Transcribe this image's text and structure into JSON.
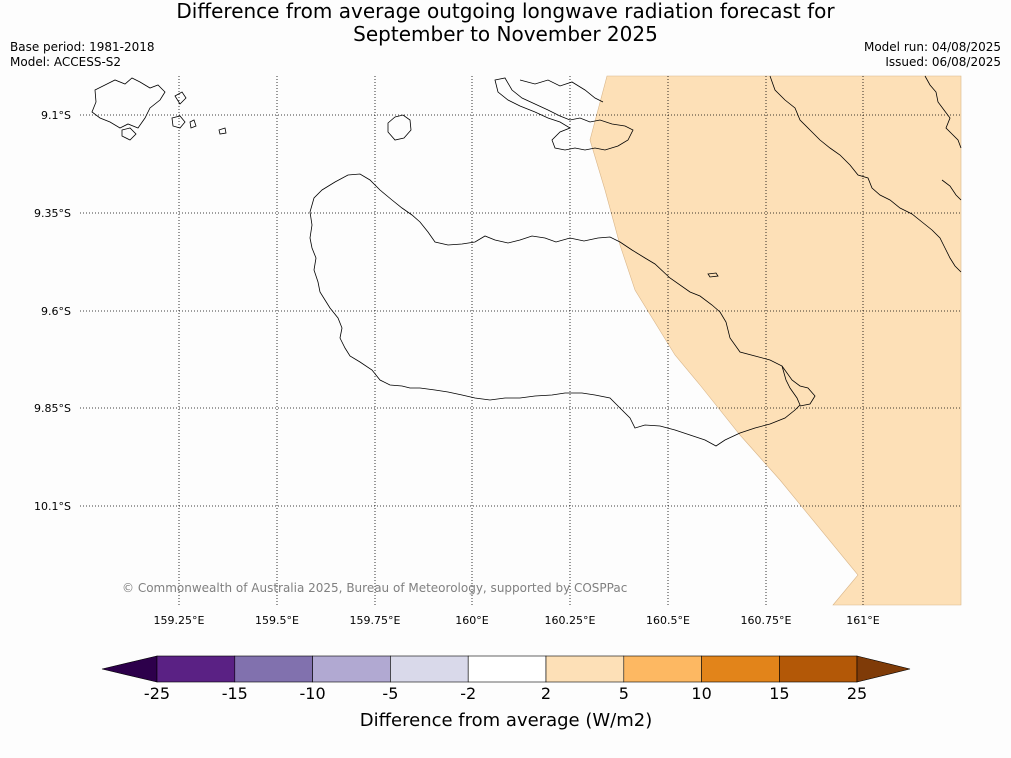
{
  "title": {
    "line1": "Difference from average outgoing longwave radiation forecast for",
    "line2": "September to November 2025"
  },
  "meta": {
    "base_period": "Base period: 1981-2018",
    "model": "Model: ACCESS-S2",
    "model_run": "Model run: 04/08/2025",
    "issued": "Issued: 06/08/2025"
  },
  "map": {
    "lat_labels": [
      "9.1°S",
      "9.35°S",
      "9.6°S",
      "9.85°S",
      "10.1°S"
    ],
    "lon_labels": [
      "159.25°E",
      "159.5°E",
      "159.75°E",
      "160°E",
      "160.25°E",
      "160.5°E",
      "160.75°E",
      "161°E"
    ],
    "copyright": "© Commonwealth of Australia 2025, Bureau of Meteorology, supported by COSPPac",
    "shaded_category": "2 to 5",
    "shade_color": "#fde0b7",
    "gridlines": "dotted"
  },
  "colorbar": {
    "ticks": [
      "-25",
      "-15",
      "-10",
      "-5",
      "-2",
      "2",
      "5",
      "10",
      "15",
      "25"
    ],
    "colors": [
      "#5a2184",
      "#8171ae",
      "#b1a9d2",
      "#d9d9ea",
      "#ffffff",
      "#fde0b7",
      "#fdb862",
      "#e2841a",
      "#b35807"
    ],
    "under_color": "#2d004b",
    "over_color": "#7f3b08",
    "label": "Difference from average (W/m2)"
  }
}
